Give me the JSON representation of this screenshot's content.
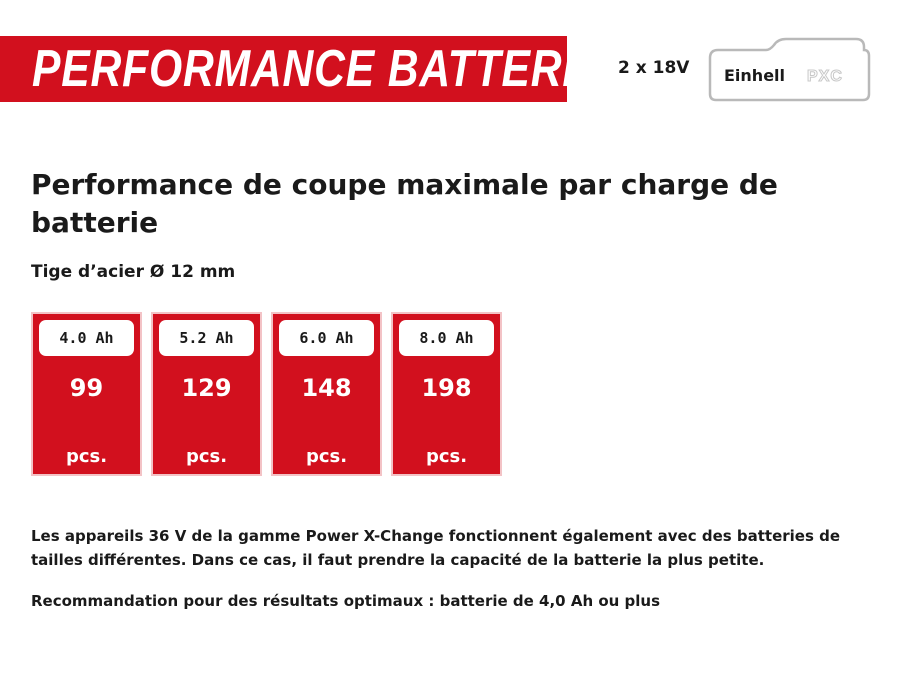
{
  "banner": {
    "title": "PERFORMANCE BATTERIE"
  },
  "voltage": "2 x 18V",
  "logo": {
    "icon": "battery-pack-icon",
    "brand": "Einhell",
    "suffix": "PXC",
    "accent": "#d2101e"
  },
  "heading": "Performance de coupe maximale par charge de batterie",
  "subheading": "Tige d’acier Ø 12 mm",
  "cards": [
    {
      "capacity": "4.0 Ah",
      "value": "99",
      "unit": "pcs."
    },
    {
      "capacity": "5.2 Ah",
      "value": "129",
      "unit": "pcs."
    },
    {
      "capacity": "6.0 Ah",
      "value": "148",
      "unit": "pcs."
    },
    {
      "capacity": "8.0 Ah",
      "value": "198",
      "unit": "pcs."
    }
  ],
  "notes": [
    "Les appareils 36 V de la gamme Power X-Change fonctionnent également avec des batteries de tailles différentes. Dans ce cas, il faut prendre la capacité de la batterie la plus petite.",
    "Recommandation pour des résultats optimaux : batterie de 4,0 Ah ou plus"
  ],
  "colors": {
    "brand_red": "#d2101e",
    "text": "#1a1a1a",
    "white": "#ffffff"
  }
}
